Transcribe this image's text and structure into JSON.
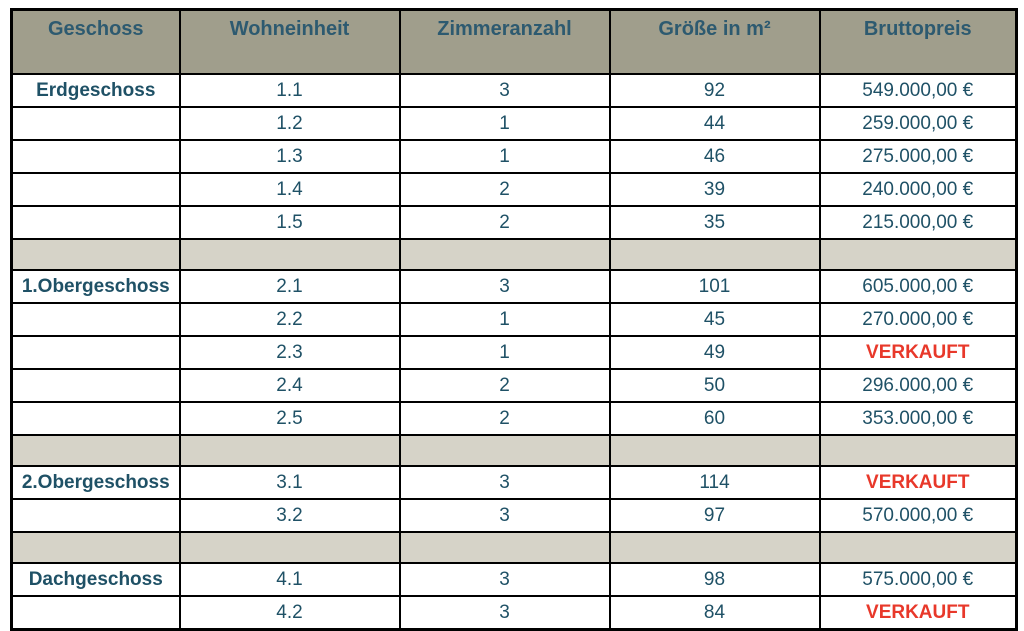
{
  "colors": {
    "header_bg": "#a09e8c",
    "separator_bg": "#d6d3c8",
    "header_text": "#2d5a70",
    "data_text": "#1f5166",
    "sold_red": "#e8382a",
    "border": "#000000"
  },
  "table": {
    "columns": [
      "Geschoss",
      "Wohneinheit",
      "Zimmeranzahl",
      "Größe in m²",
      "Bruttopreis"
    ],
    "sold_label": "VERKAUFT",
    "sections": [
      {
        "floor": "Erdgeschoss",
        "units": [
          {
            "unit": "1.1",
            "rooms": "3",
            "size": "92",
            "price": "549.000,00 €",
            "sold": false
          },
          {
            "unit": "1.2",
            "rooms": "1",
            "size": "44",
            "price": "259.000,00 €",
            "sold": false
          },
          {
            "unit": "1.3",
            "rooms": "1",
            "size": "46",
            "price": "275.000,00 €",
            "sold": false
          },
          {
            "unit": "1.4",
            "rooms": "2",
            "size": "39",
            "price": "240.000,00 €",
            "sold": false
          },
          {
            "unit": "1.5",
            "rooms": "2",
            "size": "35",
            "price": "215.000,00 €",
            "sold": false
          }
        ]
      },
      {
        "floor": "1.Obergeschoss",
        "units": [
          {
            "unit": "2.1",
            "rooms": "3",
            "size": "101",
            "price": "605.000,00 €",
            "sold": false
          },
          {
            "unit": "2.2",
            "rooms": "1",
            "size": "45",
            "price": "270.000,00 €",
            "sold": false
          },
          {
            "unit": "2.3",
            "rooms": "1",
            "size": "49",
            "price": "VERKAUFT",
            "sold": true
          },
          {
            "unit": "2.4",
            "rooms": "2",
            "size": "50",
            "price": "296.000,00 €",
            "sold": false
          },
          {
            "unit": "2.5",
            "rooms": "2",
            "size": "60",
            "price": "353.000,00 €",
            "sold": false
          }
        ]
      },
      {
        "floor": "2.Obergeschoss",
        "units": [
          {
            "unit": "3.1",
            "rooms": "3",
            "size": "114",
            "price": "VERKAUFT",
            "sold": true
          },
          {
            "unit": "3.2",
            "rooms": "3",
            "size": "97",
            "price": "570.000,00 €",
            "sold": false
          }
        ]
      },
      {
        "floor": "Dachgeschoss",
        "units": [
          {
            "unit": "4.1",
            "rooms": "3",
            "size": "98",
            "price": "575.000,00 €",
            "sold": false
          },
          {
            "unit": "4.2",
            "rooms": "3",
            "size": "84",
            "price": "VERKAUFT",
            "sold": true
          }
        ]
      }
    ]
  }
}
